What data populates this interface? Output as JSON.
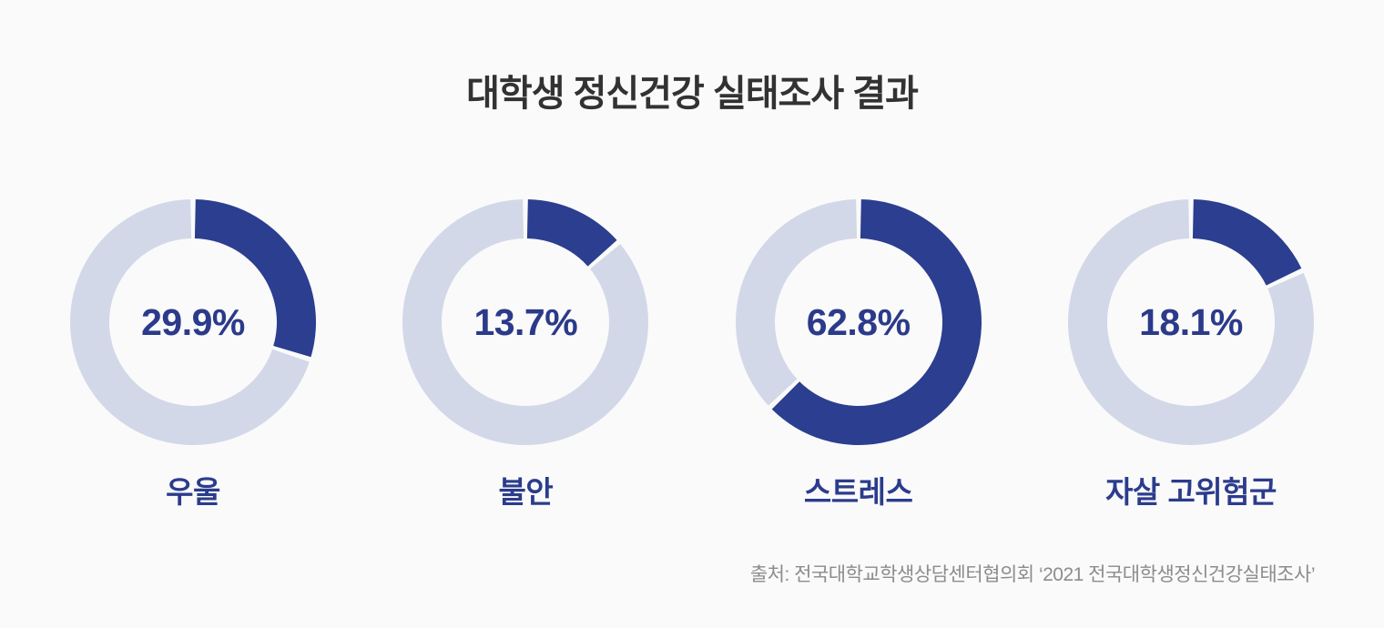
{
  "title": "대학생 정신건강 실태조사 결과",
  "source": "출처: 전국대학교학생상담센터협의회 ‘2021 전국대학생정신건강실태조사’",
  "chart_data": {
    "type": "pie",
    "subtype": "donut-small-multiples",
    "title": "대학생 정신건강 실태조사 결과",
    "unit": "%",
    "start_angle_deg": 0,
    "direction": "clockwise",
    "legend": "none",
    "items": [
      {
        "label": "우울",
        "value": 29.9,
        "value_label": "29.9%"
      },
      {
        "label": "불안",
        "value": 13.7,
        "value_label": "13.7%"
      },
      {
        "label": "스트레스",
        "value": 62.8,
        "value_label": "62.8%"
      },
      {
        "label": "자살 고위험군",
        "value": 18.1,
        "value_label": "18.1%"
      }
    ],
    "colors": {
      "filled": "#2b3e8f",
      "remainder": "#d2d8e8",
      "percent_text": "#2b3a8a",
      "category_text": "#2b3c8c",
      "title_text": "#323232",
      "source_text": "#8c8c8c",
      "background": "#fafafa"
    }
  }
}
